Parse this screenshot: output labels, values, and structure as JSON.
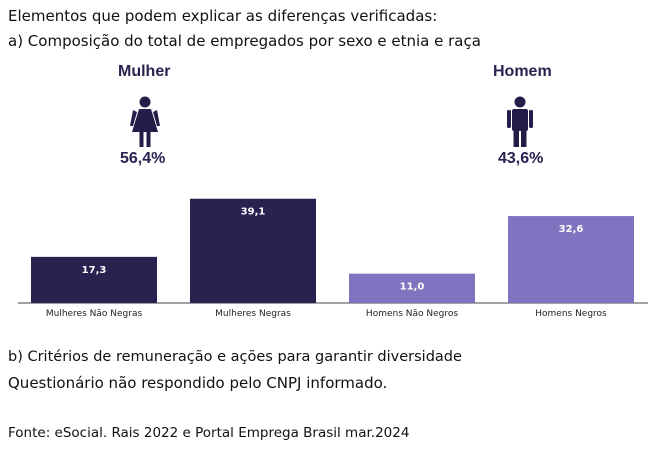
{
  "heading": "Elementos que podem explicar as diferenças verificadas:",
  "section_a": "a) Composição do total de empregados por sexo e etnia e raça",
  "female": {
    "label": "Mulher",
    "percent": "56,4%"
  },
  "male": {
    "label": "Homem",
    "percent": "43,6%"
  },
  "section_b": "b) Critérios de remuneração e ações para garantir diversidade",
  "note": "Questionário não respondido pelo CNPJ informado.",
  "source": "Fonte: eSocial. Rais 2022 e Portal Emprega Brasil mar.2024",
  "colors": {
    "dark": "#2b2150",
    "light": "#8273c0",
    "icon": "#251c4a"
  },
  "chart_data": {
    "type": "bar",
    "title": "",
    "xlabel": "",
    "ylabel": "",
    "ylim": [
      0,
      45
    ],
    "categories": [
      "Mulheres Não Negras",
      "Mulheres Negras",
      "Homens Não Negros",
      "Homens Negros"
    ],
    "values": [
      17.3,
      39.1,
      11.0,
      32.6
    ],
    "value_labels": [
      "17,3",
      "39,1",
      "11,0",
      "32,6"
    ],
    "bar_colors": [
      "#2b2150",
      "#2b2150",
      "#8273c0",
      "#8273c0"
    ]
  }
}
